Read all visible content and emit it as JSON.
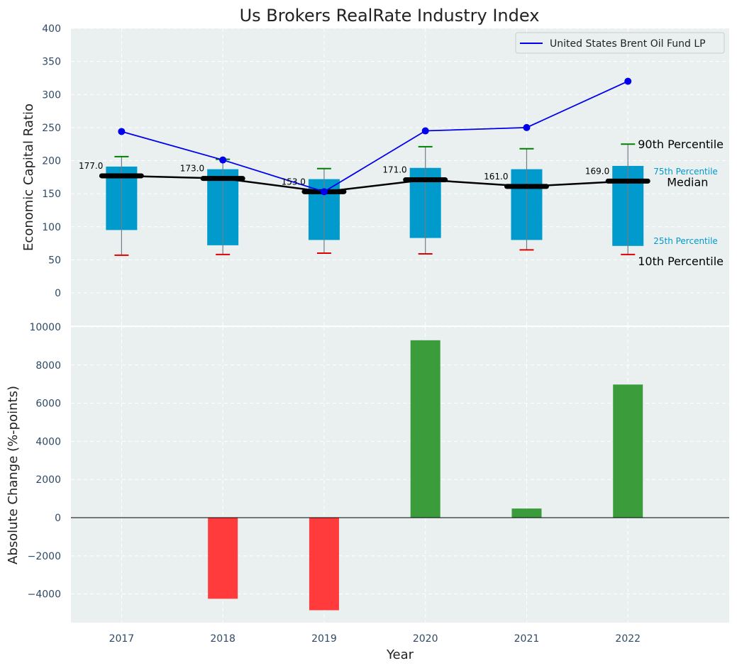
{
  "chart_data": [
    {
      "type": "box",
      "title": "Us Brokers RealRate Industry Index",
      "ylabel": "Economic Capital Ratio",
      "ylim": [
        0,
        400
      ],
      "yticks": [
        "0",
        "50",
        "100",
        "150",
        "200",
        "250",
        "300",
        "350",
        "400"
      ],
      "categories": [
        "2017",
        "2018",
        "2019",
        "2020",
        "2021",
        "2022"
      ],
      "grid": true,
      "boxes": [
        {
          "p10": 57,
          "p25": 95,
          "median": 177,
          "p75": 191,
          "p90": 206,
          "median_label": "177.0"
        },
        {
          "p10": 58,
          "p25": 72,
          "median": 173,
          "p75": 187,
          "p90": 202,
          "median_label": "173.0"
        },
        {
          "p10": 60,
          "p25": 80,
          "median": 153,
          "p75": 172,
          "p90": 188,
          "median_label": "153.0"
        },
        {
          "p10": 59,
          "p25": 83,
          "median": 171,
          "p75": 189,
          "p90": 221,
          "median_label": "171.0"
        },
        {
          "p10": 65,
          "p25": 80,
          "median": 161,
          "p75": 187,
          "p90": 218,
          "median_label": "161.0"
        },
        {
          "p10": 58,
          "p25": 71,
          "median": 169,
          "p75": 192,
          "p90": 225,
          "median_label": "169.0"
        }
      ],
      "series": [
        {
          "name": "United States Brent Oil Fund LP",
          "values": [
            244,
            201,
            153,
            245,
            250,
            320
          ],
          "color": "#0000ee"
        }
      ],
      "legend": "top-right",
      "annotations": {
        "p90": "90th Percentile",
        "p75": "75th Percentile",
        "median": "Median",
        "p25": "25th Percentile",
        "p10": "10th Percentile"
      },
      "colors": {
        "box": "#009acd",
        "median": "#000000",
        "whisker_top": "#008000",
        "whisker_bottom": "#e00000",
        "accent_text": "#009acd"
      }
    },
    {
      "type": "bar",
      "ylabel": "Absolute Change (%-points)",
      "xlabel": "Year",
      "ylim": [
        -5500,
        10000
      ],
      "yticks": [
        "−4000",
        "−2000",
        "0",
        "2000",
        "4000",
        "6000",
        "8000",
        "10000"
      ],
      "categories": [
        "2017",
        "2018",
        "2019",
        "2020",
        "2021",
        "2022"
      ],
      "values": [
        0,
        -4250,
        -4850,
        9300,
        480,
        6980
      ],
      "grid": true,
      "colors": {
        "positive": "#3a9c3a",
        "negative": "#ff3b3b"
      }
    }
  ]
}
